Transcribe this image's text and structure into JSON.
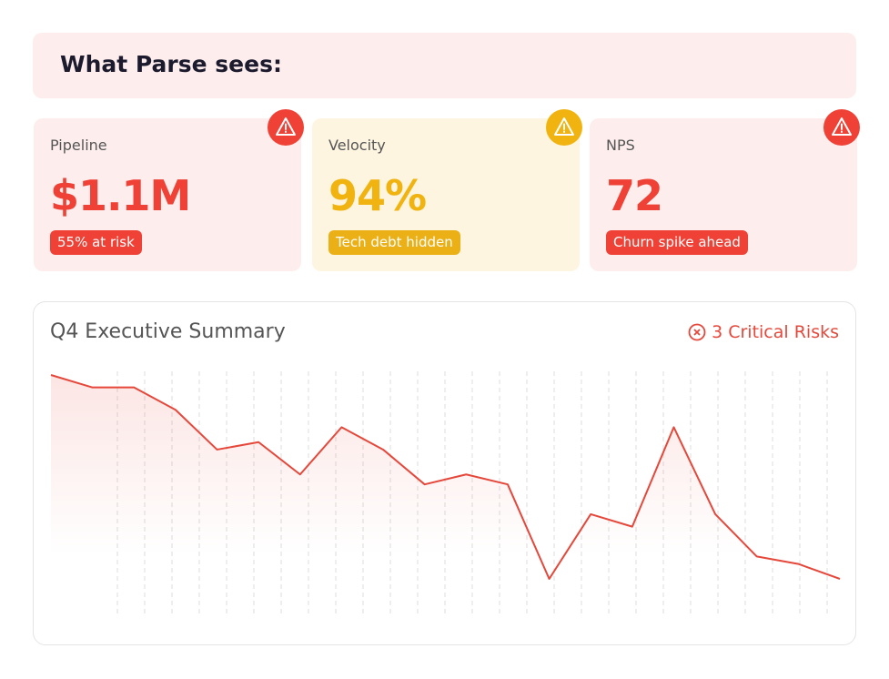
{
  "header": {
    "title": "What Parse sees:"
  },
  "metrics": [
    {
      "label": "Pipeline",
      "value": "$1.1M",
      "badge": "55% at risk",
      "status": "critical"
    },
    {
      "label": "Velocity",
      "value": "94%",
      "badge": "Tech debt hidden",
      "status": "warning"
    },
    {
      "label": "NPS",
      "value": "72",
      "badge": "Churn spike ahead",
      "status": "critical"
    }
  ],
  "chart_data": {
    "type": "line",
    "title": "Q4 Executive Summary",
    "alert": "3 Critical Risks",
    "values": [
      97,
      92,
      92,
      83,
      67,
      70,
      57,
      76,
      67,
      53,
      57,
      53,
      15,
      41,
      36,
      76,
      41,
      24,
      21,
      15
    ],
    "color": "#e5483b",
    "fill": true
  }
}
